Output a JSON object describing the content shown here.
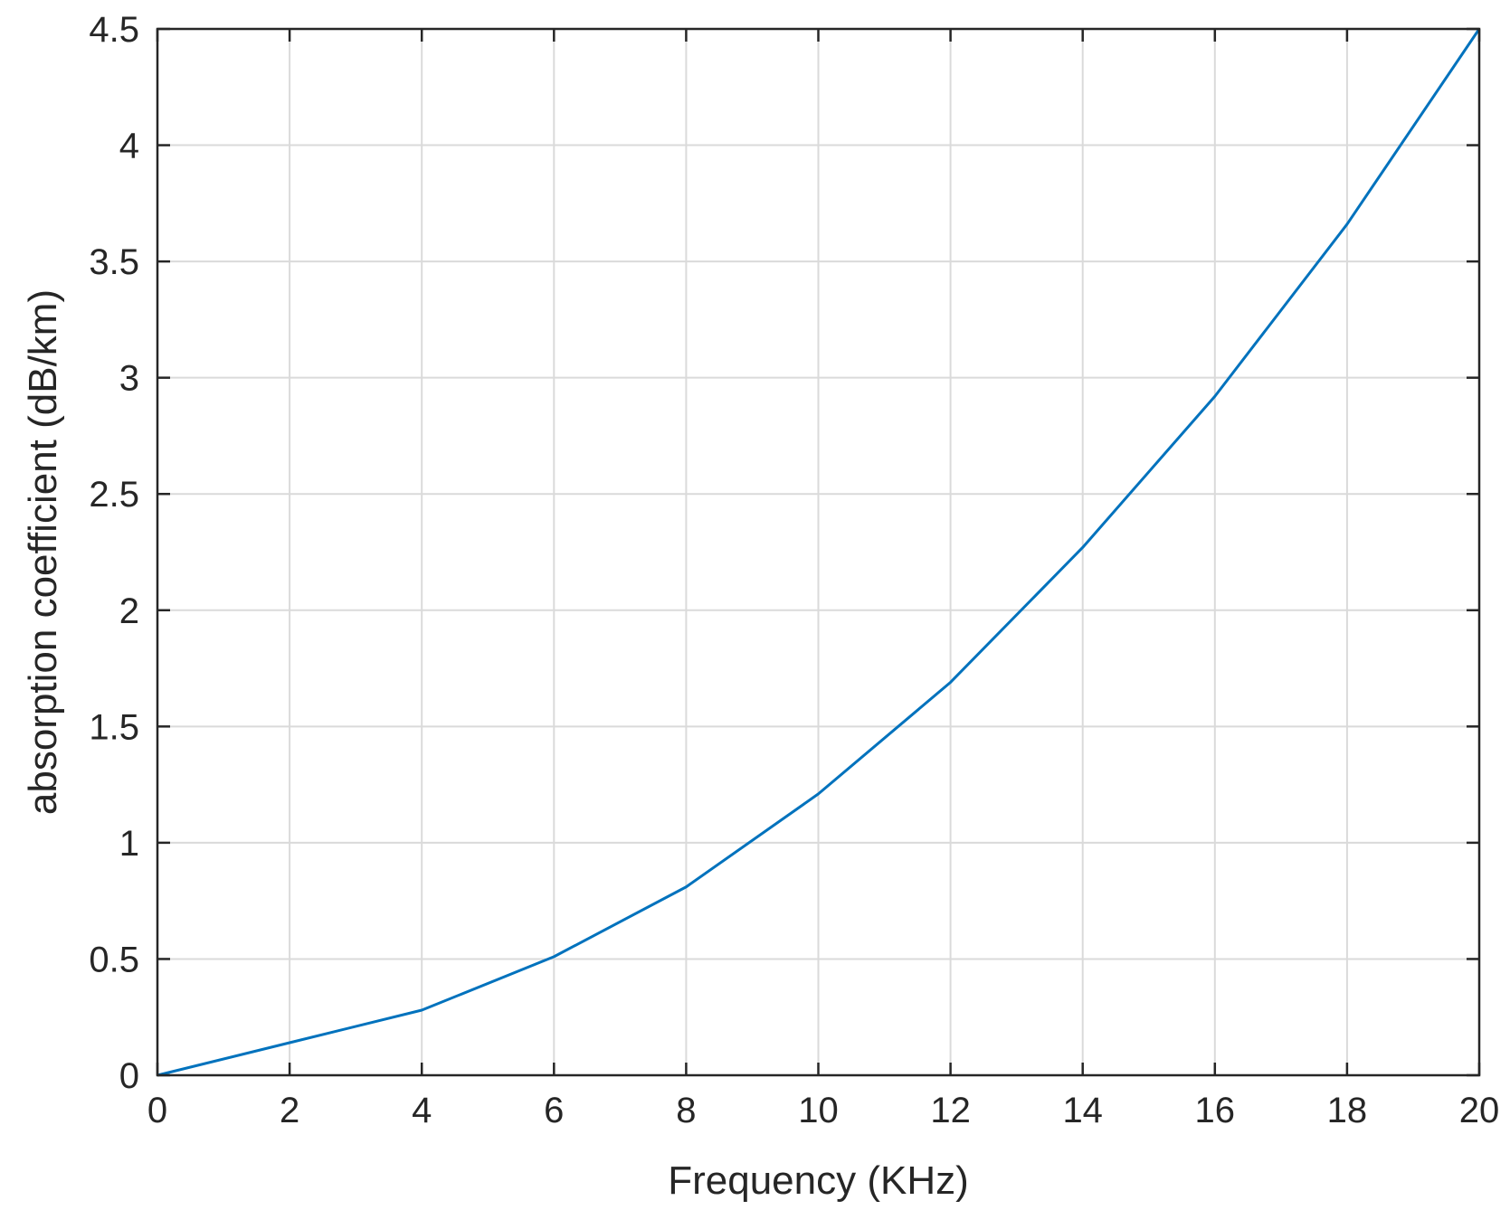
{
  "chart_data": {
    "type": "line",
    "title": "",
    "xlabel": "Frequency (KHz)",
    "ylabel": "absorption coefficient (dB/km)",
    "xlim": [
      0,
      20
    ],
    "ylim": [
      0,
      4.5
    ],
    "xticks": [
      0,
      2,
      4,
      6,
      8,
      10,
      12,
      14,
      16,
      18,
      20
    ],
    "yticks": [
      0,
      0.5,
      1,
      1.5,
      2,
      2.5,
      3,
      3.5,
      4,
      4.5
    ],
    "xtick_labels": [
      "0",
      "2",
      "4",
      "6",
      "8",
      "10",
      "12",
      "14",
      "16",
      "18",
      "20"
    ],
    "ytick_labels": [
      "0",
      "0.5",
      "1",
      "1.5",
      "2",
      "2.5",
      "3",
      "3.5",
      "4",
      "4.5"
    ],
    "grid": true,
    "legend": "none",
    "series": [
      {
        "color": "#0072BD",
        "x": [
          0,
          2,
          4,
          6,
          8,
          10,
          12,
          14,
          16,
          18,
          20
        ],
        "y": [
          0,
          0.14,
          0.28,
          0.51,
          0.81,
          1.21,
          1.69,
          2.27,
          2.92,
          3.66,
          4.5
        ]
      }
    ]
  }
}
